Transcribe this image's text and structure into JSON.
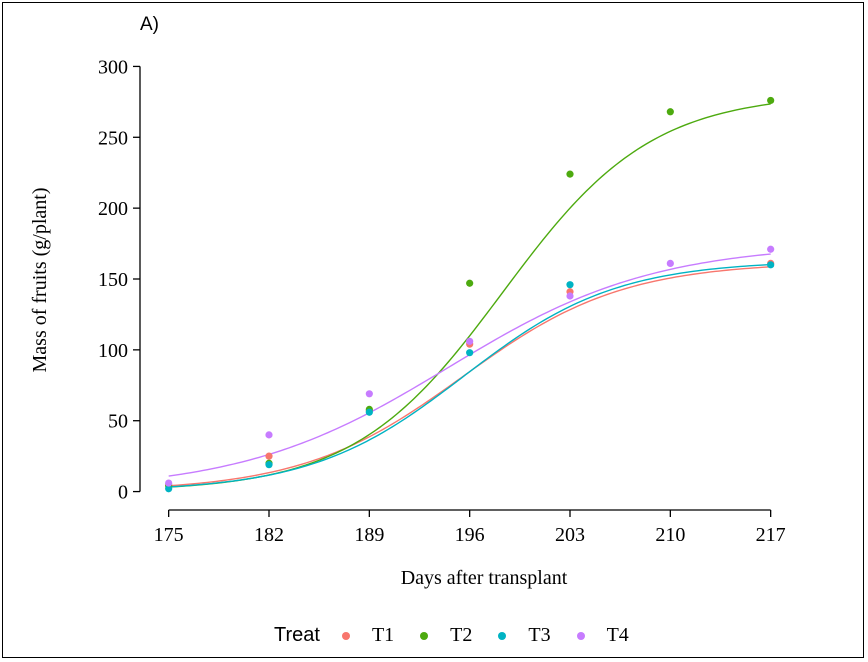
{
  "panel_label": "A)",
  "chart_data": {
    "type": "line",
    "xlabel": "Days after transplant",
    "ylabel": "Mass of fruits (g/plant)",
    "x": [
      175,
      182,
      189,
      196,
      203,
      210,
      217
    ],
    "xlim": [
      173,
      221
    ],
    "ylim": [
      -13,
      313
    ],
    "xticks": [
      "175",
      "182",
      "189",
      "196",
      "203",
      "210",
      "217"
    ],
    "yticks": [
      "0",
      "50",
      "100",
      "150",
      "200",
      "250",
      "300"
    ],
    "ytick_values": [
      0,
      50,
      100,
      150,
      200,
      250,
      300
    ],
    "grid": false,
    "legend_position": "bottom",
    "legend_title": "Treat",
    "series": [
      {
        "name": "T1",
        "color": "#F8766D",
        "points": [
          [
            175,
            5
          ],
          [
            182,
            25
          ],
          [
            189,
            57
          ],
          [
            196,
            104
          ],
          [
            203,
            141
          ],
          [
            217,
            161
          ]
        ],
        "curve": {
          "a": 162,
          "b": 195.5,
          "c": 5.6
        }
      },
      {
        "name": "T2",
        "color": "#4DAA0F",
        "points": [
          [
            175,
            4
          ],
          [
            182,
            20
          ],
          [
            189,
            58
          ],
          [
            196,
            147
          ],
          [
            203,
            224
          ],
          [
            210,
            268
          ],
          [
            217,
            276
          ]
        ],
        "curve": {
          "a": 281,
          "b": 198.3,
          "c": 5.2
        }
      },
      {
        "name": "T3",
        "color": "#00B3C3",
        "points": [
          [
            175,
            2
          ],
          [
            182,
            19
          ],
          [
            189,
            56
          ],
          [
            196,
            98
          ],
          [
            203,
            146
          ],
          [
            217,
            160
          ]
        ],
        "curve": {
          "a": 163,
          "b": 195.6,
          "c": 5.3
        }
      },
      {
        "name": "T4",
        "color": "#C77CFF",
        "points": [
          [
            175,
            6
          ],
          [
            182,
            40
          ],
          [
            189,
            69
          ],
          [
            196,
            106
          ],
          [
            203,
            138
          ],
          [
            210,
            161
          ],
          [
            217,
            171
          ]
        ],
        "curve": {
          "a": 175,
          "b": 194.5,
          "c": 7.2
        }
      }
    ]
  }
}
